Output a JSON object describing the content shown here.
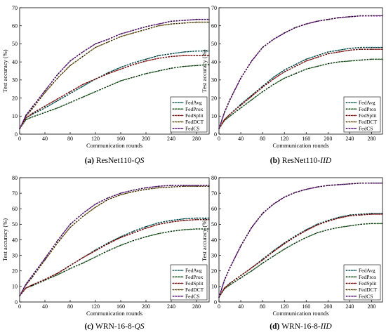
{
  "chart_data": [
    {
      "type": "line",
      "caption_label": "(a)",
      "caption_model": "ResNet110-",
      "caption_setting": "QS",
      "xlabel": "Communication rounds",
      "ylabel": "Test accuracy (%)",
      "xlim": [
        0,
        300
      ],
      "ylim": [
        0,
        70
      ],
      "xticks": [
        0,
        40,
        80,
        120,
        160,
        200,
        240,
        280
      ],
      "yticks": [
        0,
        10,
        20,
        30,
        40,
        50,
        60,
        70
      ],
      "legend_position": "bottom-right",
      "grid": false,
      "x": [
        0,
        10,
        20,
        40,
        60,
        80,
        100,
        120,
        140,
        160,
        180,
        200,
        220,
        240,
        260,
        280,
        300
      ],
      "series": [
        {
          "name": "FedAvg",
          "values": [
            3,
            9,
            11,
            14.5,
            18.5,
            22.5,
            26.5,
            30.5,
            34,
            37,
            39.5,
            41.5,
            43.5,
            44.5,
            45.5,
            46,
            46
          ]
        },
        {
          "name": "FedProx",
          "values": [
            3,
            8,
            9.5,
            12,
            14.5,
            17.5,
            20.5,
            23.5,
            26.5,
            29.5,
            31.5,
            33.5,
            35,
            36.5,
            37.5,
            38,
            38.5
          ]
        },
        {
          "name": "FedSplit",
          "values": [
            3,
            9,
            11.5,
            15.5,
            19.5,
            23.5,
            27.5,
            30.5,
            33.5,
            36,
            38.5,
            40.5,
            42,
            43,
            43.5,
            43.5,
            43.5
          ]
        },
        {
          "name": "FedDCT",
          "values": [
            3,
            10,
            14,
            23,
            31,
            38,
            43,
            48,
            51,
            54,
            56,
            58,
            60,
            61,
            61.5,
            62,
            62
          ]
        },
        {
          "name": "FedCS",
          "values": [
            3,
            10.5,
            15,
            24,
            33,
            40.5,
            45.5,
            50,
            52.5,
            55.5,
            57.5,
            59.5,
            61,
            62.5,
            63,
            63.5,
            63.5
          ]
        }
      ]
    },
    {
      "type": "line",
      "caption_label": "(b)",
      "caption_model": "ResNet110-",
      "caption_setting": "IID",
      "xlabel": "Communication rounds",
      "ylabel": "Test accuracy (%)",
      "xlim": [
        0,
        300
      ],
      "ylim": [
        0,
        70
      ],
      "xticks": [
        0,
        40,
        80,
        120,
        160,
        200,
        240,
        280
      ],
      "yticks": [
        0,
        10,
        20,
        30,
        40,
        50,
        60,
        70
      ],
      "legend_position": "bottom-right",
      "grid": false,
      "x": [
        0,
        10,
        20,
        40,
        60,
        80,
        100,
        120,
        140,
        160,
        180,
        200,
        220,
        240,
        260,
        280,
        300
      ],
      "series": [
        {
          "name": "FedAvg",
          "values": [
            3,
            8,
            11,
            16.5,
            21.5,
            26.5,
            31.5,
            35.5,
            38.5,
            41.5,
            43.5,
            45.5,
            46.5,
            47.5,
            48,
            48,
            48
          ]
        },
        {
          "name": "FedProx",
          "values": [
            3,
            7.5,
            10,
            14.5,
            19,
            23.5,
            27.5,
            31,
            33.5,
            36,
            37.5,
            39,
            40,
            40.5,
            41,
            41.5,
            41.5
          ]
        },
        {
          "name": "FedSplit",
          "values": [
            3,
            8,
            11,
            16,
            21,
            26,
            30.5,
            34.5,
            37.5,
            40.5,
            42.5,
            44.5,
            45.5,
            46.5,
            47,
            47,
            47
          ]
        },
        {
          "name": "FedDCT",
          "values": [
            3,
            12,
            19,
            31,
            40.5,
            48,
            52.5,
            56,
            59,
            61,
            62.5,
            63.5,
            64.5,
            65,
            65.5,
            65.5,
            65.5
          ]
        },
        {
          "name": "FedCS",
          "values": [
            3,
            12,
            19,
            31,
            40.5,
            48,
            52.5,
            56,
            59,
            61,
            62.5,
            63.5,
            64.5,
            65,
            65.5,
            65.5,
            65.5
          ]
        }
      ]
    },
    {
      "type": "line",
      "caption_label": "(c)",
      "caption_model": "WRN-16-8-",
      "caption_setting": "QS",
      "xlabel": "Communication rounds",
      "ylabel": "Test accuracy (%)",
      "xlim": [
        0,
        300
      ],
      "ylim": [
        0,
        80
      ],
      "xticks": [
        0,
        40,
        80,
        120,
        160,
        200,
        240,
        280
      ],
      "yticks": [
        0,
        10,
        20,
        30,
        40,
        50,
        60,
        70,
        80
      ],
      "legend_position": "bottom-right",
      "grid": false,
      "x": [
        0,
        10,
        20,
        40,
        60,
        80,
        100,
        120,
        140,
        160,
        180,
        200,
        220,
        240,
        260,
        280,
        300
      ],
      "series": [
        {
          "name": "FedAvg",
          "values": [
            4,
            9,
            11,
            14.5,
            18.5,
            23.5,
            28.5,
            33.5,
            38,
            42,
            45.5,
            48.5,
            51,
            52.5,
            53.5,
            54,
            54
          ]
        },
        {
          "name": "FedProx",
          "values": [
            4,
            9,
            10.5,
            14,
            17.5,
            21.5,
            25,
            29,
            33,
            36.5,
            39.5,
            42,
            44,
            45.5,
            46.5,
            47,
            47
          ]
        },
        {
          "name": "FedSplit",
          "values": [
            4,
            9,
            11,
            14.5,
            18.5,
            23.5,
            28.5,
            33,
            37.5,
            41.5,
            44.5,
            47.5,
            50,
            51.5,
            52.5,
            53,
            53
          ]
        },
        {
          "name": "FedDCT",
          "values": [
            4,
            11,
            16,
            27,
            38,
            48,
            55,
            61,
            66,
            69,
            71,
            72.5,
            73.5,
            74,
            74.5,
            74.5,
            74.5
          ]
        },
        {
          "name": "FedCS",
          "values": [
            4,
            11.5,
            17,
            28,
            39.5,
            50,
            57,
            63,
            67,
            70,
            72,
            73.5,
            74.5,
            75,
            75,
            75,
            75
          ]
        }
      ]
    },
    {
      "type": "line",
      "caption_label": "(d)",
      "caption_model": "WRN-16-8-",
      "caption_setting": "IID",
      "xlabel": "Communication rounds",
      "ylabel": "Test accuracy (%)",
      "xlim": [
        0,
        300
      ],
      "ylim": [
        0,
        80
      ],
      "xticks": [
        0,
        40,
        80,
        120,
        160,
        200,
        240,
        280
      ],
      "yticks": [
        0,
        10,
        20,
        30,
        40,
        50,
        60,
        70,
        80
      ],
      "legend_position": "bottom-right",
      "grid": false,
      "x": [
        0,
        10,
        20,
        40,
        60,
        80,
        100,
        120,
        140,
        160,
        180,
        200,
        220,
        240,
        260,
        280,
        300
      ],
      "series": [
        {
          "name": "FedAvg",
          "values": [
            3,
            9,
            12,
            17,
            22,
            27.5,
            33,
            38,
            42.5,
            46.5,
            50,
            52.5,
            54.5,
            56,
            56.5,
            57,
            57
          ]
        },
        {
          "name": "FedProx",
          "values": [
            3,
            8.5,
            11,
            15.5,
            20,
            25,
            29.5,
            34,
            38,
            41.5,
            44.5,
            46.5,
            48,
            49,
            50,
            50.5,
            50.5
          ]
        },
        {
          "name": "FedSplit",
          "values": [
            3,
            9,
            12,
            17,
            22,
            27,
            32.5,
            37.5,
            42,
            46,
            49.5,
            52,
            54,
            55.5,
            56,
            56.5,
            56.5
          ]
        },
        {
          "name": "FedDCT",
          "values": [
            3,
            14,
            22,
            36,
            48,
            57,
            63,
            67.5,
            70.5,
            72.5,
            74,
            75,
            75.5,
            76,
            76.5,
            76.5,
            76.5
          ]
        },
        {
          "name": "FedCS",
          "values": [
            3,
            14,
            22,
            36,
            48,
            57,
            63,
            67.5,
            70.5,
            72.5,
            74,
            75,
            75.5,
            76,
            76.5,
            76.5,
            76.5
          ]
        }
      ]
    }
  ],
  "style": {
    "series_colors": [
      "#1a8a8a",
      "#2e7d32",
      "#c62828",
      "#8a6d1d",
      "#7b1fa2"
    ],
    "dot_color": "#000000"
  }
}
